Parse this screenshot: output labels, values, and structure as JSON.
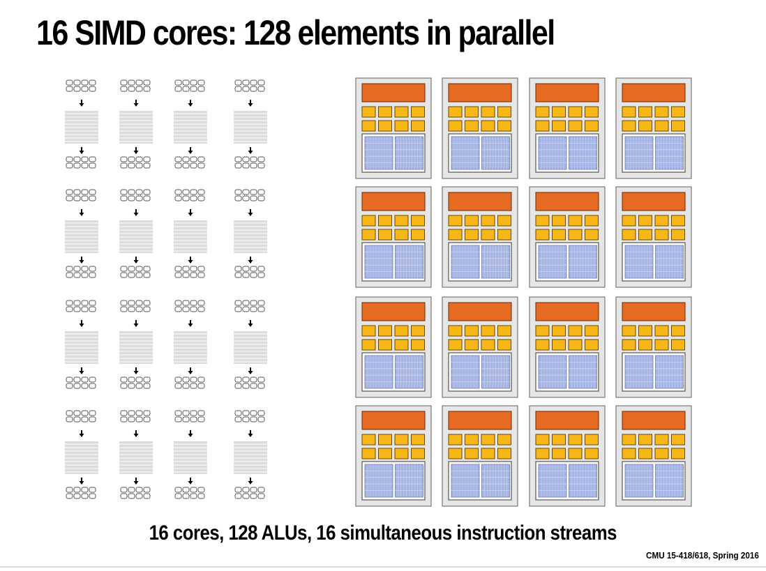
{
  "slide": {
    "title": "16 SIMD cores: 128 elements in parallel",
    "caption": "16 cores, 128 ALUs, 16 simultaneous instruction streams",
    "footer": "CMU 15-418/618, Spring 2016"
  },
  "diagram": {
    "cores": 16,
    "alus_per_core": 8,
    "instruction_streams": 16,
    "colors": {
      "fetch_decode": "#e56a22",
      "alu": "#f7b718",
      "context": "#a6b5e3",
      "core_fill": "#e6e6e6",
      "core_border": "#777777",
      "instruction_stream": "#dcdcdc"
    }
  }
}
